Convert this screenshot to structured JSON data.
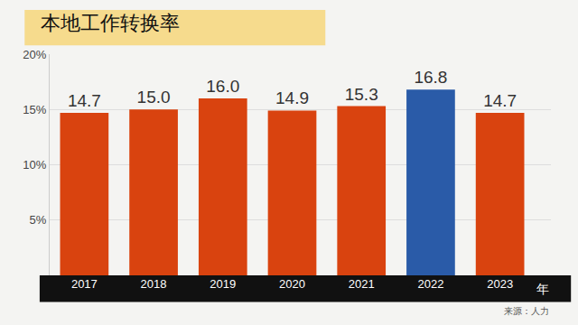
{
  "chart_data": {
    "type": "bar",
    "title": "本地工作转换率",
    "categories": [
      "2017",
      "2018",
      "2019",
      "2020",
      "2021",
      "2022",
      "2023"
    ],
    "values": [
      14.7,
      15.0,
      16.0,
      14.9,
      15.3,
      16.8,
      14.7
    ],
    "value_labels": [
      "14.7",
      "15.0",
      "16.0",
      "14.9",
      "15.3",
      "16.8",
      "14.7"
    ],
    "colors": [
      "#d9430f",
      "#d9430f",
      "#d9430f",
      "#d9430f",
      "#d9430f",
      "#2a5ba8",
      "#d9430f"
    ],
    "ylim": [
      0,
      20
    ],
    "yticks": [
      {
        "value": 5,
        "label": "5%"
      },
      {
        "value": 10,
        "label": "10%"
      },
      {
        "value": 15,
        "label": "15%"
      },
      {
        "value": 20,
        "label": "20%"
      }
    ],
    "x_label": "年",
    "annotations": [
      "来源：人力"
    ],
    "grid": true,
    "data_labels": true
  }
}
